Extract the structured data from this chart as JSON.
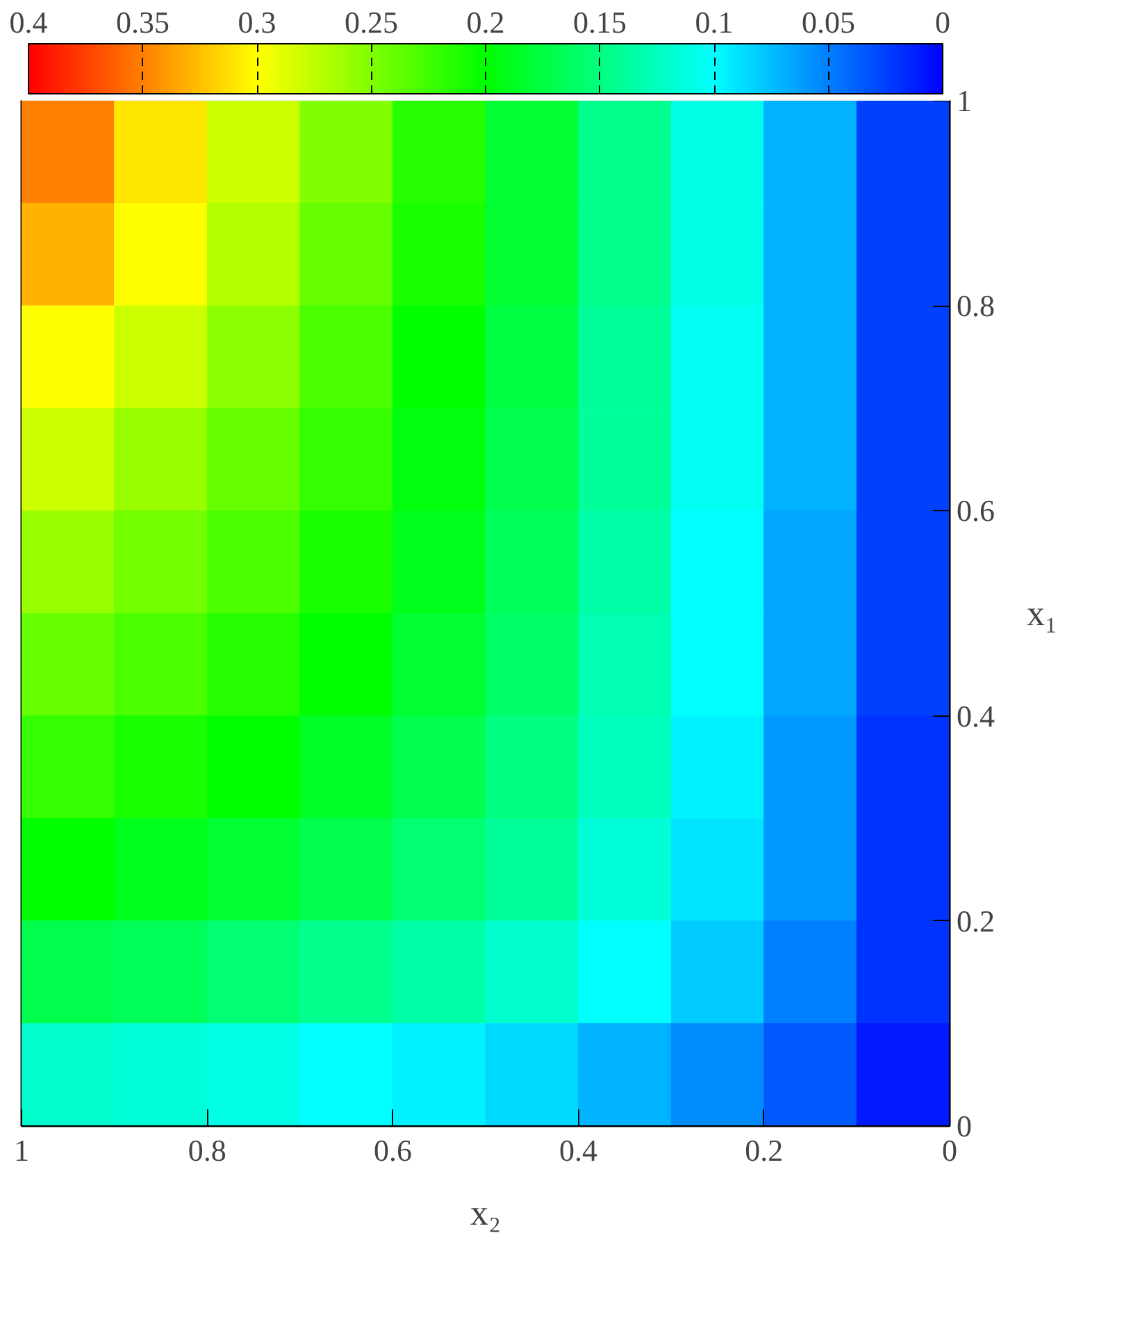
{
  "chart_data": {
    "type": "heatmap",
    "xlabel": "x₂",
    "ylabel": "x₁",
    "x": [
      0.95,
      0.85,
      0.75,
      0.65,
      0.55,
      0.45,
      0.35,
      0.25,
      0.15,
      0.05
    ],
    "y": [
      0.95,
      0.85,
      0.75,
      0.65,
      0.55,
      0.45,
      0.35,
      0.25,
      0.15,
      0.05
    ],
    "xlim": [
      1,
      0
    ],
    "xticks": [
      0,
      0.2,
      0.4,
      0.6,
      0.8,
      1
    ],
    "ylim": [
      0,
      1
    ],
    "yticks": [
      0,
      0.2,
      0.4,
      0.6,
      0.8,
      1
    ],
    "clim": [
      0.4,
      0
    ],
    "cticks": [
      0,
      0.05,
      0.1,
      0.15,
      0.2,
      0.25,
      0.3,
      0.35,
      0.4
    ],
    "cells": [
      [
        0.35,
        0.31,
        0.28,
        0.25,
        0.215,
        0.18,
        0.145,
        0.11,
        0.07,
        0.025
      ],
      [
        0.33,
        0.3,
        0.27,
        0.24,
        0.21,
        0.18,
        0.145,
        0.11,
        0.07,
        0.025
      ],
      [
        0.3,
        0.28,
        0.255,
        0.23,
        0.2,
        0.175,
        0.14,
        0.105,
        0.07,
        0.025
      ],
      [
        0.28,
        0.26,
        0.24,
        0.22,
        0.195,
        0.17,
        0.14,
        0.105,
        0.07,
        0.025
      ],
      [
        0.26,
        0.245,
        0.23,
        0.21,
        0.19,
        0.165,
        0.135,
        0.1,
        0.065,
        0.025
      ],
      [
        0.24,
        0.23,
        0.215,
        0.2,
        0.18,
        0.16,
        0.13,
        0.1,
        0.065,
        0.025
      ],
      [
        0.22,
        0.21,
        0.2,
        0.185,
        0.17,
        0.15,
        0.125,
        0.095,
        0.06,
        0.02
      ],
      [
        0.2,
        0.19,
        0.18,
        0.17,
        0.155,
        0.14,
        0.115,
        0.09,
        0.06,
        0.02
      ],
      [
        0.17,
        0.165,
        0.155,
        0.145,
        0.135,
        0.12,
        0.1,
        0.08,
        0.05,
        0.02
      ],
      [
        0.12,
        0.115,
        0.11,
        0.1,
        0.095,
        0.085,
        0.07,
        0.055,
        0.035,
        0.01
      ]
    ]
  }
}
